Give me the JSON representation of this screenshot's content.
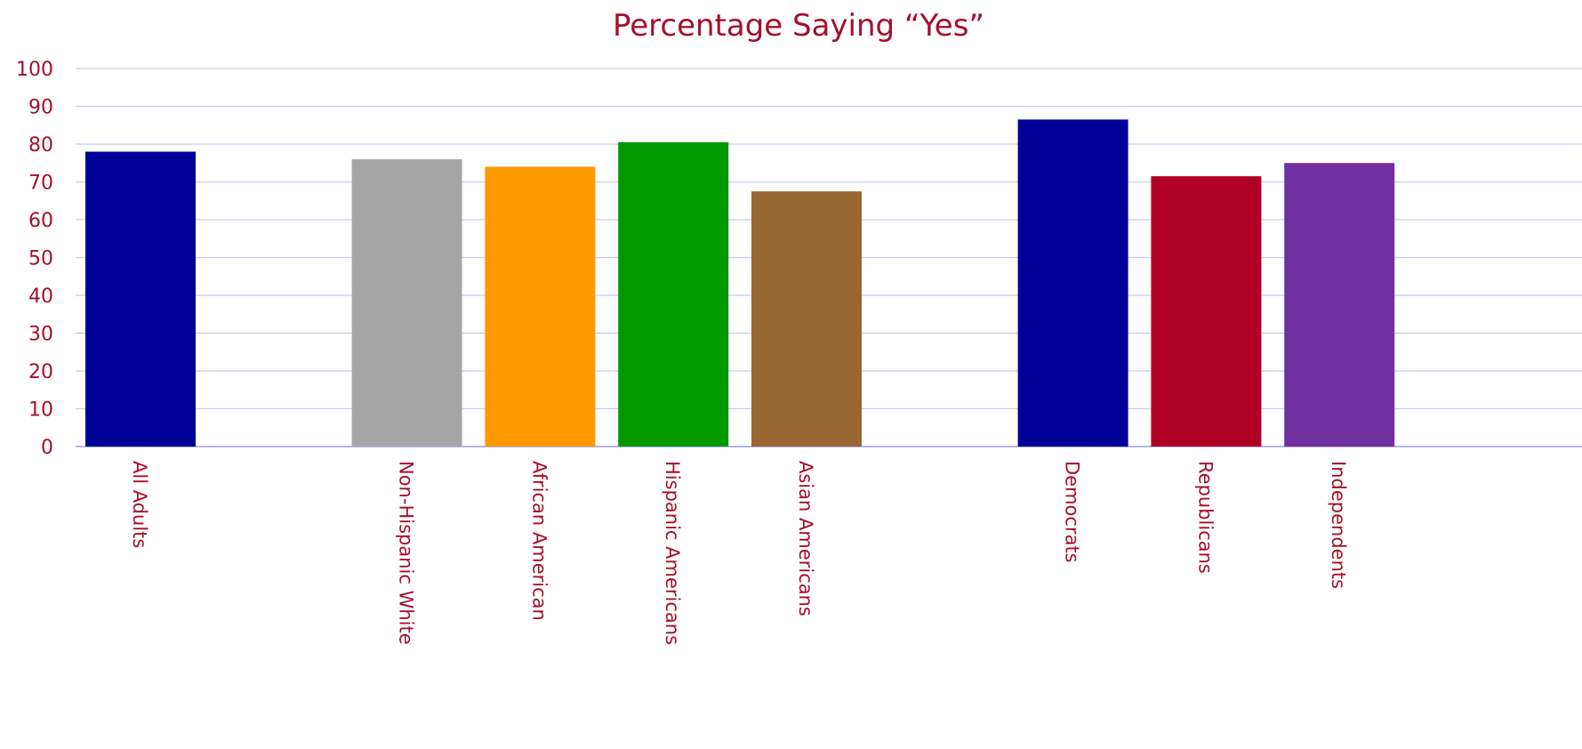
{
  "chart_data": {
    "type": "bar",
    "title": "Percentage Saying “Yes”",
    "xlabel": "",
    "ylabel": "",
    "ylim": [
      0,
      100
    ],
    "yticks": [
      "0",
      "10",
      "20",
      "30",
      "40",
      "50",
      "60",
      "70",
      "80",
      "90",
      "100"
    ],
    "grid": true,
    "categories": [
      "All Adults",
      "Non-Hispanic White",
      "African American",
      "Hispanic Americans",
      "Asian Americans",
      "Democrats",
      "Republicans",
      "Independents"
    ],
    "values": [
      78,
      76,
      74,
      80.5,
      67.5,
      86.5,
      71.5,
      75
    ],
    "bar_colors": [
      "#000099",
      "#A6A6A6",
      "#FF9900",
      "#009900",
      "#996633",
      "#000099",
      "#B00024",
      "#7030A0"
    ]
  },
  "colors": {
    "text": "#A50F2D",
    "grid": "#C8C8F0",
    "baseline": "#B4B4E6"
  }
}
